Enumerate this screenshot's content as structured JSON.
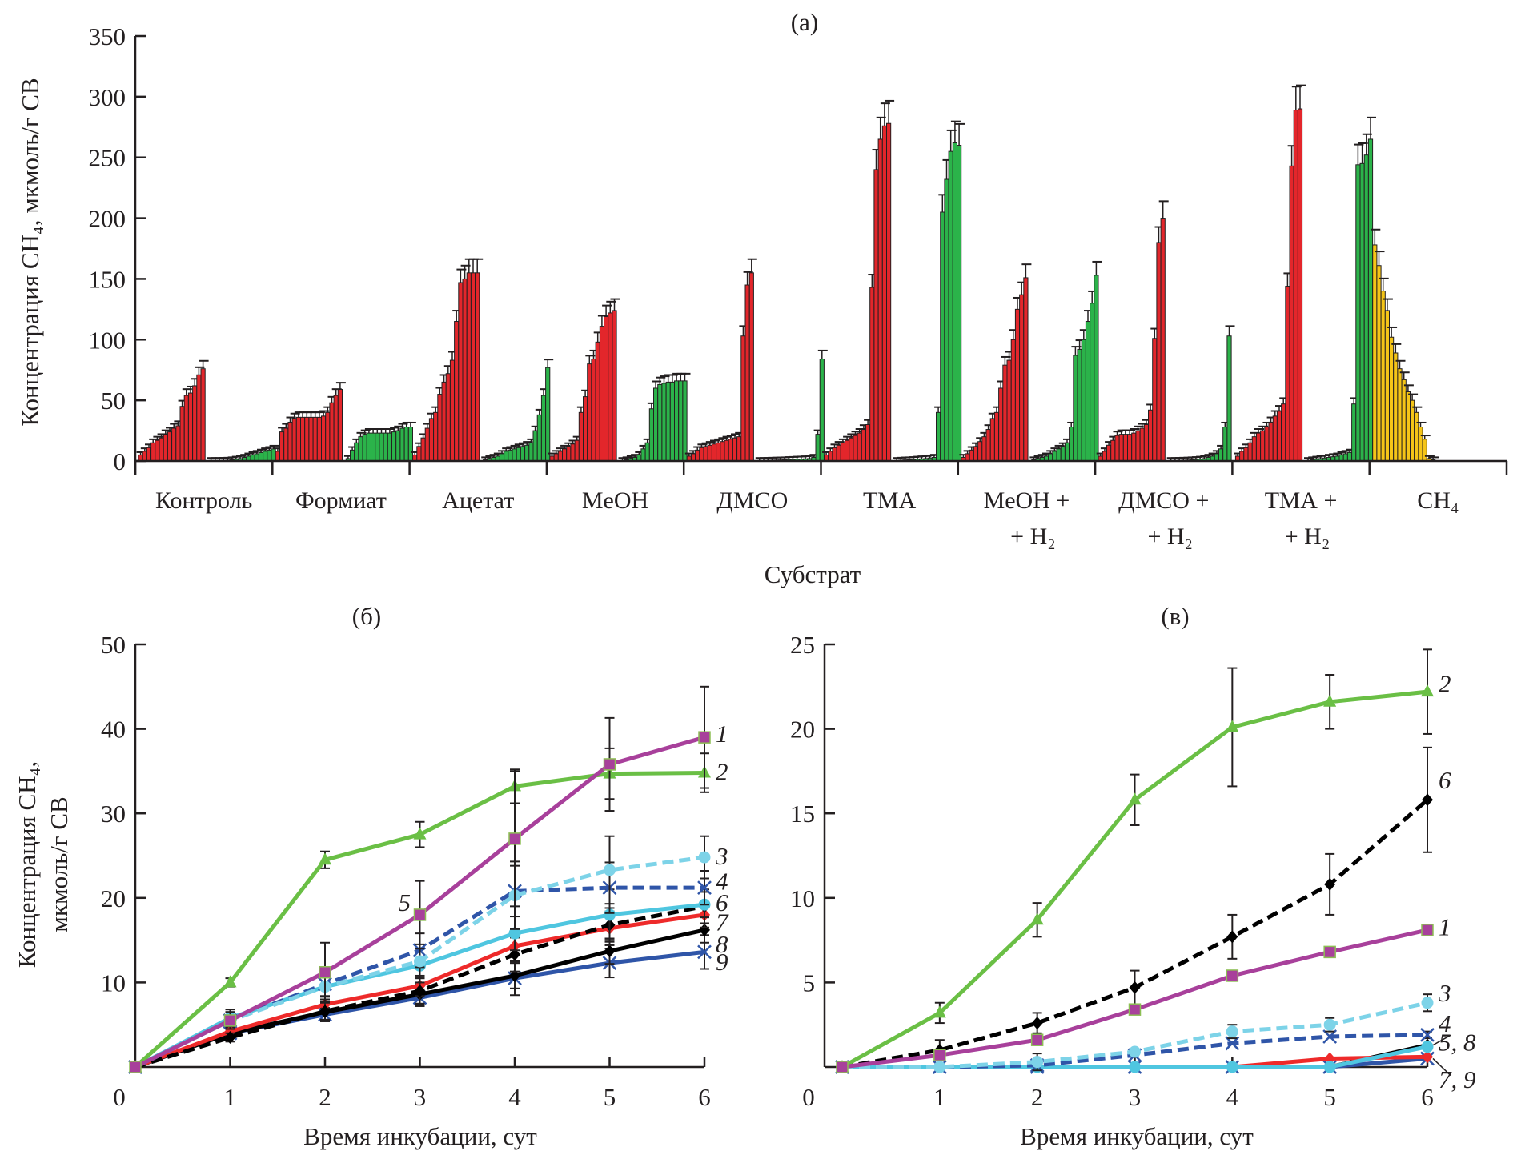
{
  "chart_data": [
    {
      "type": "bar",
      "panel": "(a)",
      "title": "(a)",
      "xlabel": "Субстрат",
      "ylabel": "Концентрация CH₄, мкмоль/г СВ",
      "ylim": [
        0,
        350
      ],
      "yticks": [
        "0",
        "50",
        "100",
        "150",
        "200",
        "250",
        "300",
        "350"
      ],
      "ytick_values": [
        0,
        50,
        100,
        150,
        200,
        250,
        300,
        350
      ],
      "grid": false,
      "categories": [
        {
          "line1": "Контроль",
          "line2": ""
        },
        {
          "line1": "Формиат",
          "line2": ""
        },
        {
          "line1": "Ацетат",
          "line2": ""
        },
        {
          "line1": "MeOH",
          "line2": ""
        },
        {
          "line1": "ДМСО",
          "line2": ""
        },
        {
          "line1": "ТМА",
          "line2": ""
        },
        {
          "line1": "MeOH +",
          "line2": "+ H₂"
        },
        {
          "line1": "ДМСО +",
          "line2": "+ H₂"
        },
        {
          "line1": "ТМА +",
          "line2": "+ H₂"
        },
        {
          "line1": "CH₄",
          "line2": ""
        }
      ],
      "colors": {
        "red": "#e3262b",
        "green": "#2bb34a",
        "yellow": "#f5c518",
        "outline": "#231f20"
      },
      "groups": [
        {
          "name": "Контроль",
          "red": [
            5,
            8,
            11,
            15,
            17,
            19,
            22,
            24,
            27,
            29,
            45,
            54,
            56,
            62,
            71,
            76
          ],
          "green": [
            0.5,
            0.5,
            0.5,
            0.6,
            0.7,
            1,
            1.5,
            2,
            3,
            4,
            5,
            6,
            7,
            8,
            9,
            10
          ]
        },
        {
          "name": "Формиат",
          "red": [
            8,
            24,
            27,
            32,
            35,
            36,
            36,
            36,
            36,
            36,
            36,
            37,
            40,
            48,
            54,
            59
          ],
          "green": [
            2,
            9,
            15,
            20,
            22,
            23,
            23,
            23,
            23,
            23,
            23,
            24,
            25,
            27,
            28,
            28
          ]
        },
        {
          "name": "Ацетат",
          "red": [
            5,
            12,
            19,
            27,
            35,
            40,
            55,
            65,
            72,
            83,
            115,
            147,
            150,
            155,
            155,
            155
          ],
          "green": [
            1,
            2,
            3,
            4,
            6,
            8,
            9,
            10,
            11,
            12,
            13,
            15,
            25,
            38,
            54,
            77
          ]
        },
        {
          "name": "MeOH",
          "red": [
            4,
            6,
            8,
            10,
            12,
            14,
            17,
            40,
            53,
            80,
            84,
            98,
            111,
            119,
            122,
            124
          ],
          "green": [
            0.5,
            1,
            2,
            3,
            5,
            10,
            15,
            43,
            60,
            63,
            64,
            65,
            65,
            66,
            66,
            66
          ]
        },
        {
          "name": "ДМСО",
          "red": [
            4,
            6,
            9,
            11,
            12,
            13,
            14,
            15,
            16,
            17,
            18,
            19,
            20,
            103,
            145,
            155
          ],
          "green": [
            0.5,
            0.5,
            0.6,
            0.7,
            0.8,
            0.9,
            1,
            1.2,
            1.3,
            1.5,
            1.6,
            1.8,
            2,
            3,
            22,
            84
          ]
        },
        {
          "name": "ТМА",
          "red": [
            5,
            8,
            11,
            13,
            15,
            17,
            19,
            21,
            23,
            26,
            30,
            143,
            240,
            265,
            276,
            278
          ],
          "green": [
            0.5,
            0.7,
            0.9,
            1,
            1.2,
            1.5,
            1.8,
            2,
            2.5,
            3,
            40,
            205,
            232,
            255,
            262,
            260
          ]
        },
        {
          "name": "MeOH + H₂",
          "red": [
            3,
            6,
            9,
            12,
            16,
            20,
            26,
            35,
            40,
            60,
            79,
            83,
            100,
            125,
            137,
            151
          ],
          "green": [
            1,
            2,
            3,
            4,
            6,
            8,
            10,
            12,
            15,
            28,
            87,
            92,
            100,
            115,
            130,
            153
          ]
        },
        {
          "name": "ДМСО + H₂",
          "red": [
            4,
            8,
            13,
            17,
            21,
            22,
            22,
            22,
            23,
            25,
            27,
            30,
            42,
            101,
            180,
            200
          ],
          "green": [
            0.5,
            0.5,
            0.6,
            0.7,
            0.8,
            1,
            1.2,
            1.5,
            2,
            3,
            4,
            6,
            10,
            28,
            103
          ]
        },
        {
          "name": "ТМА + H₂",
          "red": [
            4,
            8,
            11,
            15,
            20,
            23,
            25,
            28,
            32,
            37,
            41,
            47,
            144,
            243,
            289,
            290
          ],
          "green": [
            0.5,
            1,
            1.5,
            2,
            2.5,
            3,
            3.5,
            4,
            5,
            6,
            7,
            47,
            244,
            245,
            252,
            265
          ]
        },
        {
          "name": "CH₄",
          "yellow": [
            178,
            161,
            140,
            124,
            102,
            89,
            76,
            67,
            57,
            50,
            40,
            28,
            18,
            2,
            1
          ]
        }
      ]
    },
    {
      "type": "line",
      "panel": "(б)",
      "title": "(б)",
      "xlabel": "Время инкубации, сут",
      "ylabel_line1": "Концентрация CH₄,",
      "ylabel_line2": "мкмоль/г СВ",
      "x": [
        0,
        1,
        2,
        3,
        4,
        5,
        6
      ],
      "xticks": [
        "0",
        "1",
        "2",
        "3",
        "4",
        "5",
        "6"
      ],
      "ylim": [
        0,
        50
      ],
      "yticks": [
        "10",
        "20",
        "30",
        "40",
        "50"
      ],
      "ytick_values": [
        10,
        20,
        30,
        40,
        50
      ],
      "grid": false,
      "series": [
        {
          "name": "1",
          "label": "1",
          "color": "#a8409b",
          "dash": false,
          "marker": "square",
          "values": [
            0,
            5.5,
            11.2,
            18,
            27,
            35.8,
            39
          ],
          "err": [
            0,
            1,
            3.5,
            4,
            8,
            5.5,
            6
          ]
        },
        {
          "name": "2",
          "label": "2",
          "color": "#6abf45",
          "dash": false,
          "marker": "triangle",
          "values": [
            0,
            10,
            24.5,
            27.5,
            33.2,
            34.7,
            34.8
          ],
          "err": [
            0,
            0.5,
            1,
            1.5,
            2,
            3,
            2.3
          ]
        },
        {
          "name": "3",
          "label": "3",
          "color": "#7dd3e8",
          "dash": true,
          "marker": "circle",
          "values": [
            0,
            5.5,
            9.5,
            12.5,
            20.3,
            23.3,
            24.8
          ],
          "err": [
            0,
            1,
            1.5,
            2,
            4,
            4,
            2.5
          ]
        },
        {
          "name": "4",
          "label": "4",
          "color": "#2f55a8",
          "dash": true,
          "marker": "x",
          "values": [
            0,
            5.5,
            9.8,
            13.8,
            20.8,
            21.2,
            21.2
          ],
          "err": [
            0,
            1,
            1.5,
            2,
            3,
            3,
            2
          ]
        },
        {
          "name": "5",
          "label": "5",
          "color": "#4fc6e0",
          "dash": false,
          "marker": "circle",
          "values": [
            0,
            5.8,
            9.5,
            12,
            15.8,
            18,
            19.2
          ],
          "err": [
            0,
            1,
            1.5,
            2,
            2,
            3,
            1.5
          ]
        },
        {
          "name": "6",
          "label": "6",
          "color": "#000000",
          "dash": true,
          "marker": "diamond",
          "values": [
            0,
            3.5,
            6.6,
            9,
            13.3,
            16.8,
            19
          ],
          "err": [
            0,
            0.5,
            1,
            1.5,
            2,
            2,
            2
          ]
        },
        {
          "name": "7",
          "label": "7",
          "color": "#ee2a2a",
          "dash": false,
          "marker": "diamond",
          "values": [
            0,
            4.2,
            7.4,
            9.6,
            14.3,
            16.4,
            18
          ],
          "err": [
            0,
            0.5,
            1,
            1.2,
            2,
            2,
            1.5
          ]
        },
        {
          "name": "8",
          "label": "8",
          "color": "#000000",
          "dash": false,
          "marker": "diamond",
          "values": [
            0,
            4,
            6.5,
            8.6,
            10.8,
            13.7,
            16.2
          ],
          "err": [
            0,
            0.5,
            1,
            1.2,
            1.5,
            1.5,
            1.5
          ]
        },
        {
          "name": "9",
          "label": "9",
          "color": "#2f55a8",
          "dash": false,
          "marker": "x",
          "values": [
            0,
            4,
            6.2,
            8.2,
            10.5,
            12.3,
            13.6
          ],
          "err": [
            0,
            0.5,
            0.8,
            1,
            2,
            1.7,
            2
          ]
        }
      ],
      "annotations": [
        {
          "text": "5",
          "x": 2.5,
          "y": 19.5
        }
      ]
    },
    {
      "type": "line",
      "panel": "(в)",
      "title": "(в)",
      "xlabel": "Время инкубации, сут",
      "x": [
        0,
        1,
        2,
        3,
        4,
        5,
        6
      ],
      "xticks": [
        "0",
        "1",
        "2",
        "3",
        "4",
        "5",
        "6"
      ],
      "ylim": [
        0,
        25
      ],
      "yticks": [
        "5",
        "10",
        "15",
        "20",
        "25"
      ],
      "ytick_values": [
        5,
        10,
        15,
        20,
        25
      ],
      "grid": false,
      "series": [
        {
          "name": "1",
          "color": "#a8409b",
          "dash": false,
          "marker": "square",
          "values": [
            0,
            0.7,
            1.6,
            3.4,
            5.4,
            6.8,
            8.1
          ],
          "err": [
            0,
            0,
            0,
            0,
            0,
            0,
            0
          ]
        },
        {
          "name": "2",
          "color": "#6abf45",
          "dash": false,
          "marker": "triangle",
          "values": [
            0,
            3.2,
            8.7,
            15.8,
            20.1,
            21.6,
            22.2
          ],
          "err": [
            0,
            0.6,
            1,
            1.5,
            3.5,
            1.6,
            2.5
          ]
        },
        {
          "name": "3",
          "color": "#7dd3e8",
          "dash": true,
          "marker": "circle",
          "values": [
            0,
            0,
            0.3,
            0.9,
            2.1,
            2.5,
            3.8
          ],
          "err": [
            0,
            0,
            0.5,
            0,
            0.4,
            0.4,
            0.5
          ]
        },
        {
          "name": "4",
          "color": "#2f55a8",
          "dash": true,
          "marker": "x",
          "values": [
            0,
            0,
            0.1,
            0.7,
            1.4,
            1.8,
            1.9
          ],
          "err": [
            0,
            0,
            0,
            0,
            0,
            0,
            0.2
          ]
        },
        {
          "name": "5",
          "color": "#4fc6e0",
          "dash": false,
          "marker": "circle",
          "values": [
            0,
            0,
            0,
            0,
            0,
            0,
            1.2
          ],
          "err": [
            0,
            0,
            0,
            0,
            0,
            0,
            0
          ]
        },
        {
          "name": "6",
          "color": "#000000",
          "dash": true,
          "marker": "diamond",
          "values": [
            0,
            1,
            2.6,
            4.7,
            7.7,
            10.8,
            15.8
          ],
          "err": [
            0,
            0.6,
            0.6,
            1,
            1.3,
            1.8,
            3.1
          ]
        },
        {
          "name": "7",
          "color": "#ee2a2a",
          "dash": false,
          "marker": "diamond",
          "values": [
            0,
            0,
            0,
            0,
            0,
            0.5,
            0.6
          ],
          "err": [
            0,
            0,
            0,
            0,
            0,
            0,
            0
          ]
        },
        {
          "name": "8",
          "color": "#000000",
          "dash": false,
          "marker": "diamond",
          "values": [
            0,
            0,
            0,
            0,
            0,
            0,
            1.3
          ],
          "err": [
            0,
            0,
            0,
            0,
            0,
            0,
            0
          ]
        },
        {
          "name": "9",
          "color": "#2f55a8",
          "dash": false,
          "marker": "x",
          "values": [
            0,
            0,
            0,
            0,
            0,
            0,
            0.5
          ],
          "err": [
            0,
            0,
            0,
            0,
            0,
            0,
            0
          ]
        }
      ],
      "end_labels": [
        {
          "text": "2",
          "y": 22.7
        },
        {
          "text": "6",
          "y": 17
        },
        {
          "text": "1",
          "y": 8.3
        },
        {
          "text": "3",
          "y": 4.4
        },
        {
          "text": "4",
          "y": 2.6
        },
        {
          "text": "5, 8",
          "y": 1.5
        },
        {
          "text": "7, 9",
          "y": -0.7
        }
      ]
    }
  ],
  "panel_b_end_labels": [
    {
      "text": "1",
      "y": 39.5
    },
    {
      "text": "2",
      "y": 35
    },
    {
      "text": "3",
      "y": 25
    },
    {
      "text": "4",
      "y": 22
    },
    {
      "text": "6",
      "y": 19.5
    },
    {
      "text": "7",
      "y": 17.2
    },
    {
      "text": "8",
      "y": 14.6
    },
    {
      "text": "9",
      "y": 12.5
    }
  ]
}
